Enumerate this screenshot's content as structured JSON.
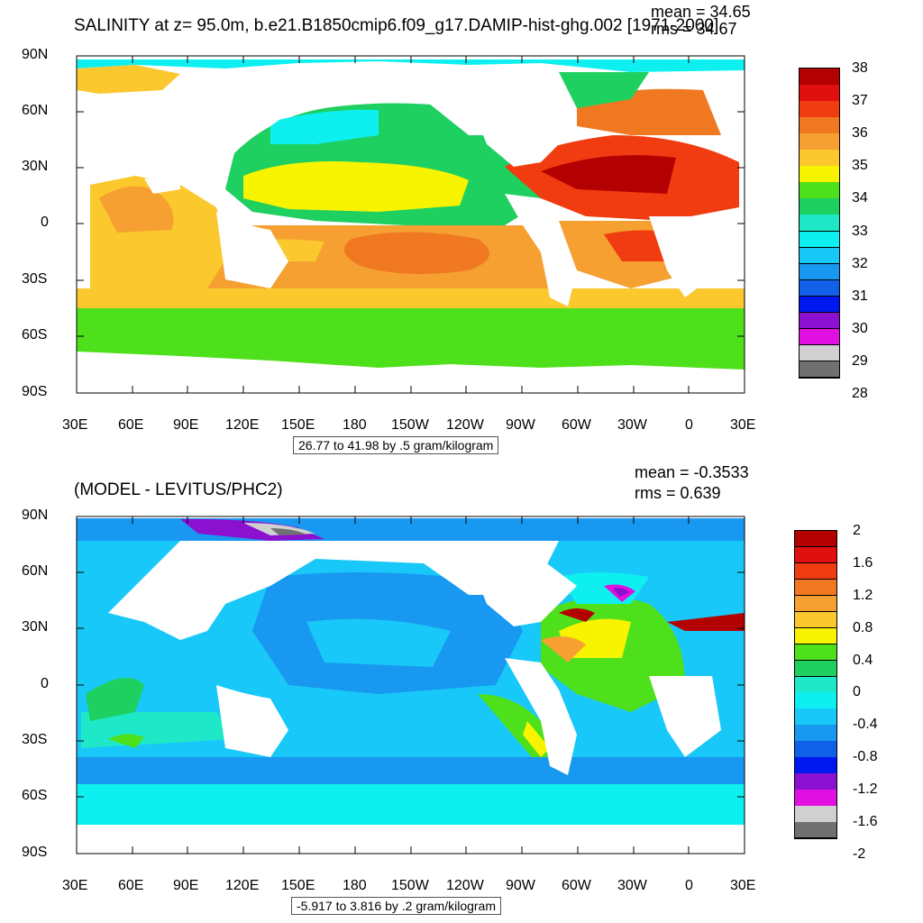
{
  "panel_top": {
    "title": "SALINITY at z=  95.0m, b.e21.B1850cmip6.f09_g17.DAMIP-hist-ghg.002 [1971-2000]",
    "mean_text": "mean = 34.65",
    "rms_text": "rms = 34.67",
    "range_text": "26.77 to 41.98 by .5 gram/kilogram",
    "colorbar_labels": [
      "38",
      "37",
      "36",
      "35",
      "34",
      "33",
      "32",
      "31",
      "30",
      "29",
      "28"
    ],
    "colorbar_colors": [
      "#b30000",
      "#e01010",
      "#f03c10",
      "#f07820",
      "#f5a030",
      "#fbc82e",
      "#f8f400",
      "#4ee01a",
      "#1ed060",
      "#1ee8c8",
      "#0ef0f0",
      "#18c8f8",
      "#1898f0",
      "#1060e8",
      "#0018f0",
      "#8c10d0",
      "#e010e0",
      "#d0d0d0",
      "#707070"
    ]
  },
  "panel_bottom": {
    "title": "(MODEL - LEVITUS/PHC2)",
    "mean_text": "mean = -0.3533",
    "rms_text": "rms = 0.639",
    "range_text": "-5.917 to 3.816 by .2 gram/kilogram",
    "colorbar_labels": [
      "2",
      "1.6",
      "1.2",
      "0.8",
      "0.4",
      "0",
      "-0.4",
      "-0.8",
      "-1.2",
      "-1.6",
      "-2"
    ],
    "colorbar_colors": [
      "#b30000",
      "#e01010",
      "#f03c10",
      "#f07820",
      "#f5a030",
      "#fbc82e",
      "#f8f400",
      "#4ee01a",
      "#1ed060",
      "#1ee8c8",
      "#0ef0f0",
      "#18c8f8",
      "#1898f0",
      "#1060e8",
      "#0018f0",
      "#8c10d0",
      "#e010e0",
      "#d0d0d0",
      "#707070"
    ]
  },
  "axes": {
    "lat_labels": [
      "90N",
      "60N",
      "30N",
      "0",
      "30S",
      "60S",
      "90S"
    ],
    "lon_labels": [
      "30E",
      "60E",
      "90E",
      "120E",
      "150E",
      "180",
      "150W",
      "120W",
      "90W",
      "60W",
      "30W",
      "0",
      "30E"
    ]
  }
}
